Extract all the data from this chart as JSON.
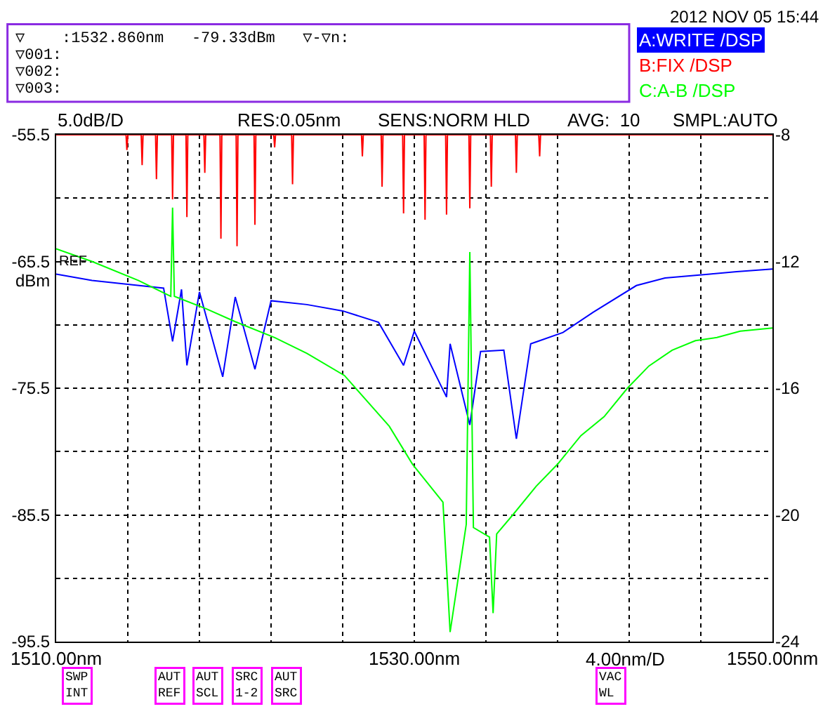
{
  "chart_data": {
    "type": "line",
    "xlabel": "4.00nm/D",
    "legend": "top right",
    "grid": true,
    "marker": "none",
    "line_style": "solid",
    "annotations": [
      "2012 NOV 05 15:44",
      "▽    :1532.860nm   -79.33dBm   ▽-▽n:",
      "▽001:",
      "▽002:",
      "▽003:",
      "5.0dB/D",
      "RES:0.05nm",
      "SENS:NORM HLD",
      "AVG:  10",
      "SMPL:AUTO",
      "REF",
      "dBm",
      "SWP\nINT",
      "AUT\nREF",
      "AUT\nSCL",
      "SRC\n1-2",
      "AUT\nSRC",
      "VAC\nWL"
    ],
    "xlim": [
      1510,
      1550
    ],
    "xticks": [
      {
        "value": 1510,
        "label": "1510.00nm"
      },
      {
        "value": 1514,
        "label": null
      },
      {
        "value": 1518,
        "label": null
      },
      {
        "value": 1522,
        "label": null
      },
      {
        "value": 1526,
        "label": null
      },
      {
        "value": 1530,
        "label": "1530.00nm"
      },
      {
        "value": 1534,
        "label": null
      },
      {
        "value": 1538,
        "label": null
      },
      {
        "value": 1542,
        "label": null
      },
      {
        "value": 1546,
        "label": null
      },
      {
        "value": 1550,
        "label": "1550.00nm"
      }
    ],
    "ylim": [
      -95.5,
      -55.5
    ],
    "yticks": [
      -95.5,
      {
        "value": -90.5,
        "label": null
      },
      -85.5,
      {
        "value": -80.5,
        "label": null
      },
      -75.5,
      {
        "value": -70.5,
        "label": null
      },
      -65.5,
      {
        "value": -60.5,
        "label": null
      },
      -55.5
    ],
    "y2lim": [
      -24,
      -8
    ],
    "y2ticks": [
      -24,
      -20,
      -16,
      -12,
      -8
    ],
    "series": [
      {
        "name": "A:WRITE /DSP",
        "color": "#0000ff",
        "x": [
          1510,
          1512,
          1514,
          1516,
          1516.5,
          1517,
          1517.3,
          1518,
          1519.3,
          1520,
          1521.1,
          1522,
          1524,
          1526,
          1528,
          1529.4,
          1530,
          1531.8,
          1532,
          1533.1,
          1533.7,
          1535,
          1535.7,
          1536.5,
          1538.3,
          1540,
          1542.4,
          1544,
          1546.5,
          1548,
          1550
        ],
        "values": [
          -66.5,
          -67.0,
          -67.3,
          -67.6,
          -71.8,
          -67.7,
          -73.7,
          -67.9,
          -74.6,
          -68.3,
          -74.0,
          -68.6,
          -68.9,
          -69.4,
          -70.3,
          -73.7,
          -71.0,
          -76.2,
          -72.0,
          -78.4,
          -72.6,
          -72.5,
          -79.5,
          -72.0,
          -71.1,
          -69.5,
          -67.4,
          -66.8,
          -66.5,
          -66.3,
          -66.1
        ]
      },
      {
        "name": "B:FIX /DSP",
        "color": "#ff0000",
        "x": [
          1510,
          1513.9,
          1513.95,
          1514,
          1514.75,
          1514.8,
          1514.85,
          1515.55,
          1515.6,
          1515.65,
          1516.45,
          1516.5,
          1516.55,
          1517.25,
          1517.3,
          1517.35,
          1518.25,
          1518.3,
          1518.35,
          1519.15,
          1519.2,
          1519.25,
          1520.05,
          1520.1,
          1520.15,
          1521.05,
          1521.1,
          1521.15,
          1522.15,
          1522.2,
          1522.25,
          1523.15,
          1523.2,
          1523.25,
          1527.05,
          1527.1,
          1527.15,
          1528.15,
          1528.2,
          1528.25,
          1529.35,
          1529.4,
          1529.45,
          1530.55,
          1530.6,
          1530.65,
          1531.75,
          1531.8,
          1531.85,
          1533.05,
          1533.1,
          1533.15,
          1534.25,
          1534.3,
          1534.35,
          1535.65,
          1535.7,
          1535.75,
          1536.95,
          1537.0,
          1537.05,
          1550
        ],
        "values": [
          -55.5,
          -55.5,
          -56.7,
          -55.5,
          -55.5,
          -57.9,
          -55.5,
          -55.5,
          -59.0,
          -55.5,
          -55.5,
          -60.6,
          -55.5,
          -55.5,
          -62.0,
          -55.5,
          -55.5,
          -58.5,
          -55.5,
          -55.5,
          -63.7,
          -55.5,
          -55.5,
          -64.3,
          -55.5,
          -55.5,
          -62.6,
          -55.5,
          -55.5,
          -56.5,
          -55.5,
          -55.5,
          -59.4,
          -55.5,
          -55.5,
          -57.2,
          -55.5,
          -55.5,
          -59.6,
          -55.5,
          -55.5,
          -61.7,
          -55.5,
          -55.5,
          -62.2,
          -55.5,
          -55.5,
          -61.8,
          -55.5,
          -55.5,
          -61.3,
          -55.5,
          -55.5,
          -59.6,
          -55.5,
          -55.5,
          -58.5,
          -55.5,
          -55.5,
          -57.2,
          -55.5,
          -55.5
        ]
      },
      {
        "name": "C:A-B /DSP",
        "color": "#00ff00",
        "axis": "y2",
        "x": [
          1510,
          1512,
          1514.6,
          1516.4,
          1516.5,
          1516.6,
          1518.4,
          1520,
          1522.2,
          1524,
          1526.1,
          1528.6,
          1529.9,
          1531.6,
          1532,
          1532.9,
          1533.1,
          1533.3,
          1534.2,
          1534.4,
          1534.6,
          1535.5,
          1536.8,
          1538,
          1539.3,
          1540.6,
          1541.9,
          1543.1,
          1544.4,
          1545.7,
          1546.9,
          1548.2,
          1550
        ],
        "values": [
          -11.6,
          -12.0,
          -12.6,
          -13.1,
          -10.3,
          -13.1,
          -13.5,
          -13.9,
          -14.4,
          -14.9,
          -15.6,
          -17.2,
          -18.4,
          -19.6,
          -23.7,
          -20.3,
          -11.7,
          -20.4,
          -20.7,
          -23.1,
          -20.6,
          -20.0,
          -19.1,
          -18.4,
          -17.5,
          -16.9,
          -16.0,
          -15.3,
          -14.8,
          -14.5,
          -14.4,
          -14.2,
          -14.1
        ]
      }
    ]
  }
}
